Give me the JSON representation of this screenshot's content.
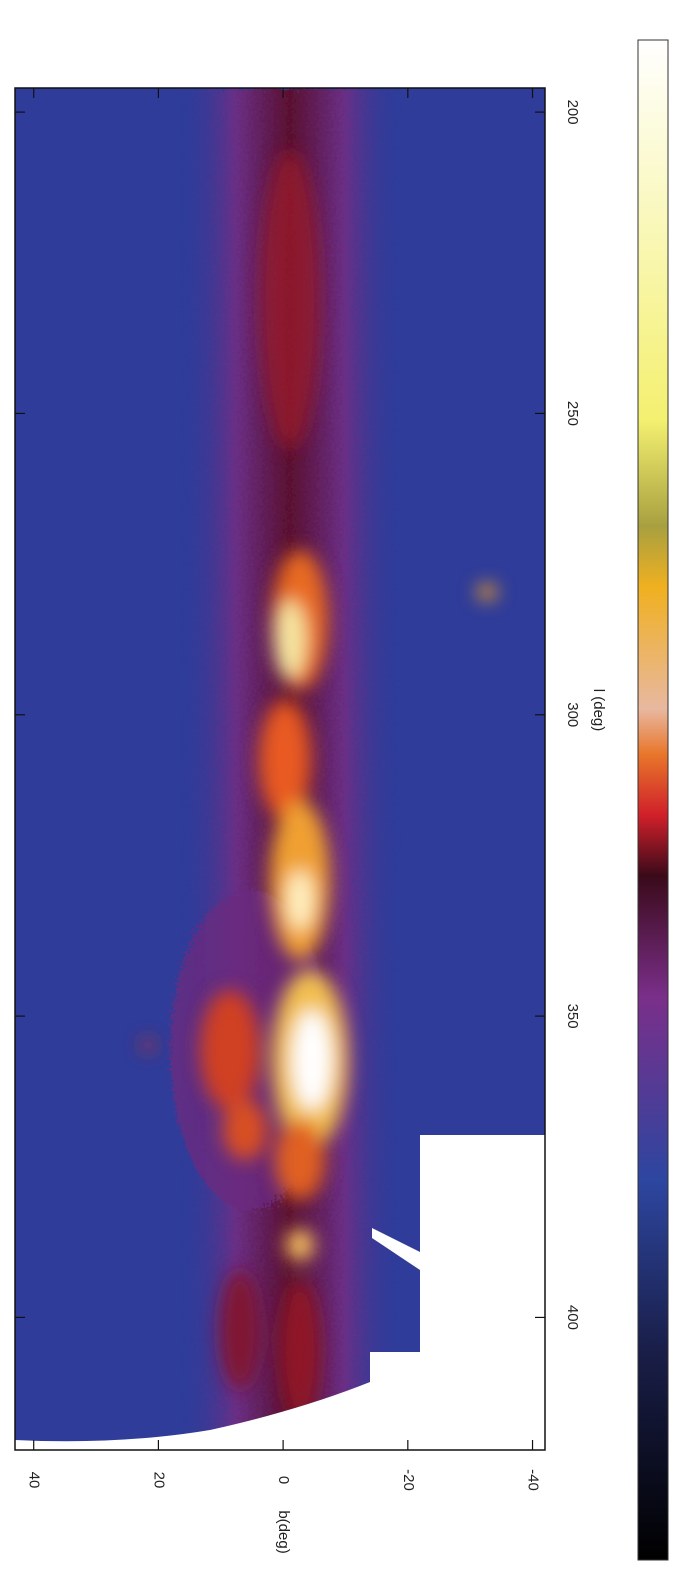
{
  "chart_data": {
    "type": "heatmap",
    "xlabel": "l (deg)",
    "ylabel": "b(deg)",
    "xlim": [
      196,
      422
    ],
    "xticks": [
      200,
      250,
      300,
      350,
      400
    ],
    "ylim": [
      43,
      -42
    ],
    "yticks": [
      40,
      20,
      0,
      -20,
      -40
    ]
  }
}
